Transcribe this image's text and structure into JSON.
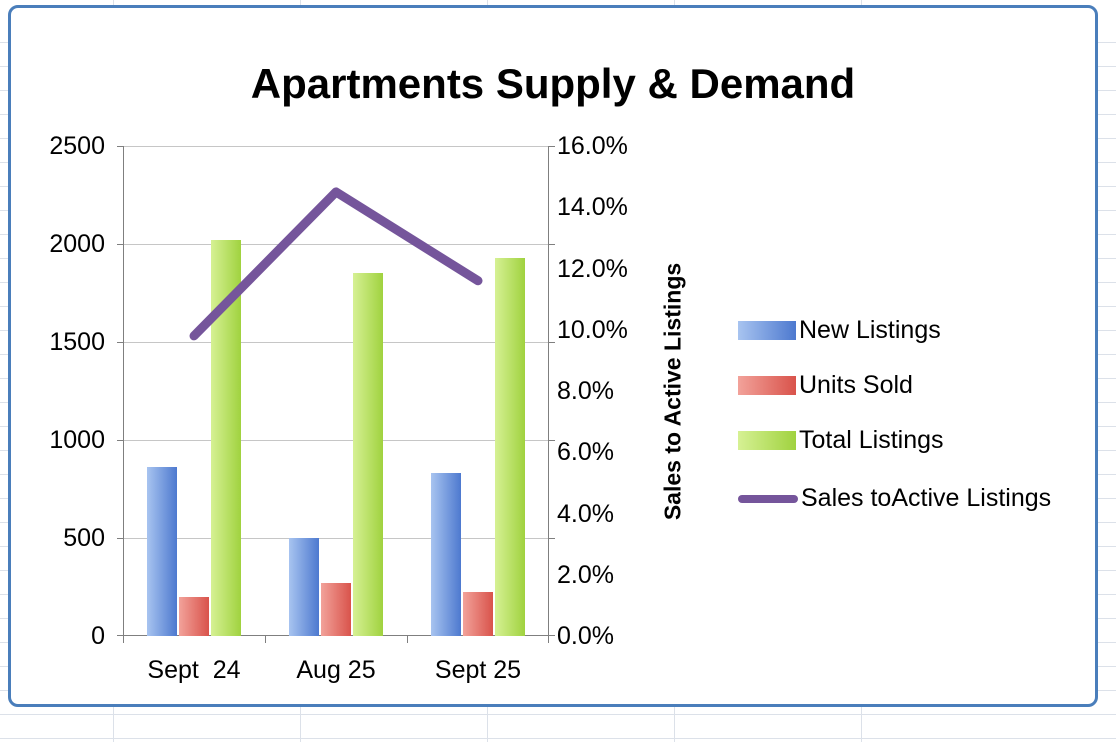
{
  "chart_data": {
    "type": "bar",
    "combo": "clustered columns with line on secondary percentage axis",
    "title": "Apartments Supply & Demand",
    "categories": [
      "Sept  24",
      "Aug 25",
      "Sept 25"
    ],
    "series": [
      {
        "name": "New Listings",
        "values": [
          860,
          500,
          830
        ],
        "color": "#4d79cf",
        "color_light": "#a8c4f0"
      },
      {
        "name": "Units Sold",
        "values": [
          200,
          270,
          225
        ],
        "color": "#d9534b",
        "color_light": "#f2a29a"
      },
      {
        "name": "Total Listings",
        "values": [
          2020,
          1850,
          1930
        ],
        "color": "#a0d23f",
        "color_light": "#d6f194"
      }
    ],
    "line_series": {
      "name": "Sales toActive Listings",
      "values_pct": [
        9.8,
        14.5,
        11.6
      ],
      "color": "#75559b"
    },
    "left_axis": {
      "min": 0,
      "max": 2500,
      "ticks": [
        "2500",
        "2000",
        "1500",
        "1000",
        "500",
        "0"
      ]
    },
    "right_axis": {
      "min": 0,
      "max": 16,
      "label": "Sales to Active Listings",
      "ticks": [
        "16.0%",
        "14.0%",
        "12.0%",
        "10.0%",
        "8.0%",
        "6.0%",
        "4.0%",
        "2.0%",
        "0.0%"
      ]
    },
    "legend_position": "right",
    "grid": "horizontal"
  },
  "frame": {
    "border_color": "#4a7ebb",
    "background": "#ffffff",
    "sheet_line_color": "#dce1e9"
  }
}
